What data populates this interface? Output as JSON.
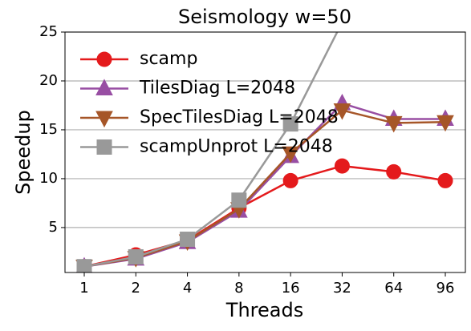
{
  "chart_data": {
    "type": "line",
    "title": "Seismology w=50",
    "x_label": "Threads",
    "y_label": "Speedup",
    "categories": [
      "1",
      "2",
      "4",
      "8",
      "16",
      "32",
      "64",
      "96"
    ],
    "series": [
      {
        "name": "scamp",
        "color": "#e41a1c",
        "marker": "circle",
        "values": [
          1.0,
          2.2,
          3.7,
          7.0,
          9.8,
          11.3,
          10.7,
          9.8
        ]
      },
      {
        "name": "TilesDiag L=2048",
        "color": "#984ea3",
        "marker": "triangle-up",
        "values": [
          1.0,
          1.8,
          3.5,
          6.7,
          12.3,
          17.7,
          16.1,
          16.1
        ]
      },
      {
        "name": "SpecTilesDiag L=2048",
        "color": "#a65628",
        "marker": "triangle-down",
        "values": [
          1.0,
          1.9,
          3.6,
          6.9,
          12.6,
          17.0,
          15.7,
          15.8
        ]
      },
      {
        "name": "scampUnprot L=2048",
        "color": "#999999",
        "marker": "square",
        "values": [
          1.0,
          2.0,
          3.8,
          7.8,
          15.6,
          26.0,
          null,
          null
        ]
      }
    ],
    "ylim": [
      0.4,
      25
    ],
    "yticks": [
      5,
      10,
      15,
      20,
      25
    ],
    "grid": true,
    "legend": "upper left"
  }
}
